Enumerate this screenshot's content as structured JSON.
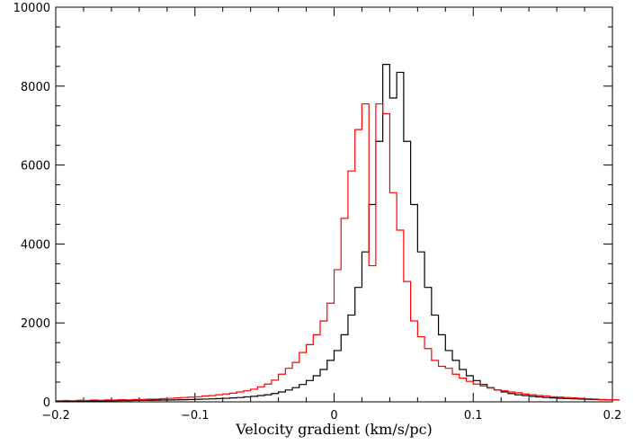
{
  "chart_data": {
    "type": "step-histogram",
    "title": "",
    "xlabel": "Velocity gradient (km/s/pc)",
    "ylabel": "",
    "xlim": [
      -0.2,
      0.2
    ],
    "ylim": [
      0,
      10000
    ],
    "grid": false,
    "x_ticks": [
      -0.2,
      -0.1,
      0,
      0.1,
      0.2
    ],
    "x_tick_labels": [
      "−0.2",
      "−0.1",
      "0",
      "0.1",
      "0.2"
    ],
    "y_ticks": [
      0,
      2000,
      4000,
      6000,
      8000,
      10000
    ],
    "y_tick_labels": [
      "0",
      "2000",
      "4000",
      "6000",
      "8000",
      "10000"
    ],
    "bin_width": 0.005,
    "bins_start": -0.2,
    "series": [
      {
        "color": "#000000",
        "values": [
          20,
          20,
          20,
          22,
          22,
          24,
          25,
          25,
          28,
          30,
          32,
          35,
          38,
          40,
          42,
          45,
          48,
          52,
          55,
          60,
          65,
          70,
          75,
          82,
          90,
          100,
          110,
          125,
          140,
          160,
          180,
          210,
          250,
          300,
          360,
          440,
          540,
          660,
          820,
          1050,
          1300,
          1700,
          2200,
          2900,
          3800,
          5000,
          6600,
          8550,
          7700,
          8350,
          6600,
          5000,
          3800,
          2900,
          2200,
          1700,
          1300,
          1050,
          820,
          660,
          540,
          440,
          360,
          300,
          250,
          210,
          180,
          160,
          140,
          125,
          110,
          100,
          90,
          82,
          75,
          70,
          65,
          60,
          55,
          52,
          48
        ]
      },
      {
        "color": "#ff0000",
        "values": [
          30,
          35,
          30,
          40,
          35,
          45,
          40,
          50,
          45,
          55,
          50,
          60,
          60,
          70,
          70,
          80,
          90,
          100,
          110,
          120,
          130,
          150,
          160,
          180,
          200,
          220,
          250,
          280,
          320,
          380,
          450,
          550,
          700,
          850,
          1000,
          1250,
          1450,
          1700,
          2050,
          2500,
          3350,
          4650,
          5850,
          6900,
          7550,
          3450,
          7550,
          7300,
          5300,
          4350,
          3050,
          2050,
          1650,
          1350,
          1050,
          900,
          850,
          700,
          600,
          520,
          450,
          400,
          350,
          300,
          280,
          250,
          230,
          200,
          180,
          160,
          150,
          130,
          120,
          110,
          100,
          90,
          80,
          70,
          60,
          55,
          50
        ]
      }
    ]
  }
}
